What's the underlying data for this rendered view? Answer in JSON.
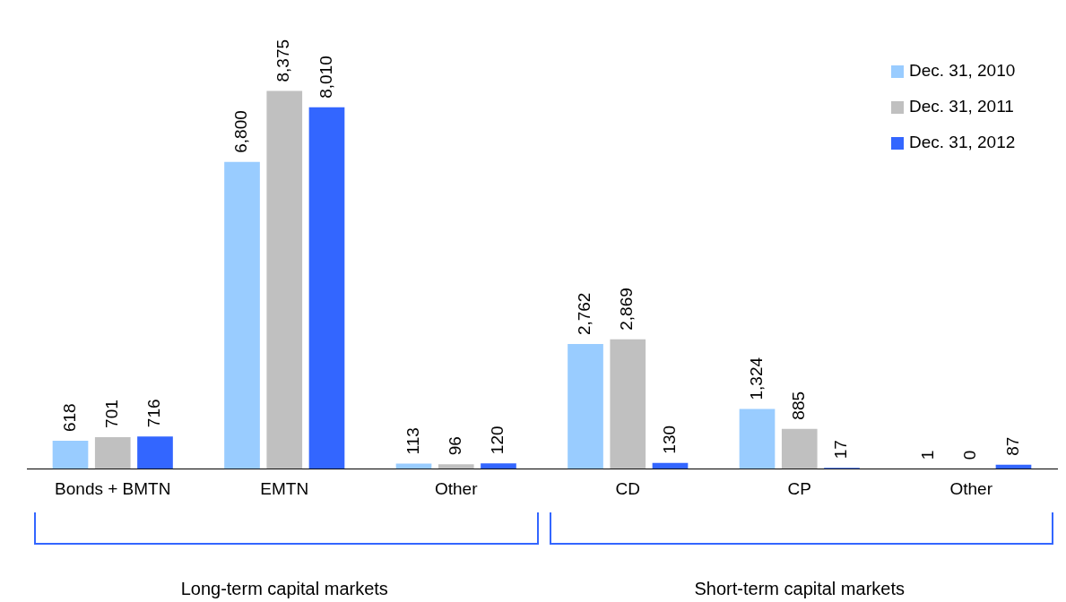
{
  "chart_data": {
    "type": "bar",
    "categories": [
      "Bonds + BMTN",
      "EMTN",
      "Other",
      "CD",
      "CP",
      "Other"
    ],
    "series": [
      {
        "name": "Dec. 31, 2010",
        "color": "#99ccff",
        "values": [
          618,
          6800,
          113,
          2762,
          1324,
          1
        ],
        "value_labels": [
          "618",
          "6,800",
          "113",
          "2,762",
          "1,324",
          "1"
        ]
      },
      {
        "name": "Dec. 31, 2011",
        "color": "#c0c0c0",
        "values": [
          701,
          8375,
          96,
          2869,
          885,
          0
        ],
        "value_labels": [
          "701",
          "8,375",
          "96",
          "2,869",
          "885",
          "0"
        ]
      },
      {
        "name": "Dec. 31, 2012",
        "color": "#3366ff",
        "values": [
          716,
          8010,
          120,
          130,
          17,
          87
        ],
        "value_labels": [
          "716",
          "8,010",
          "120",
          "130",
          "17",
          "87"
        ]
      }
    ],
    "legend": "top right",
    "grid": false,
    "annotations": [
      "Long-term capital markets",
      "Short-term capital markets"
    ]
  }
}
